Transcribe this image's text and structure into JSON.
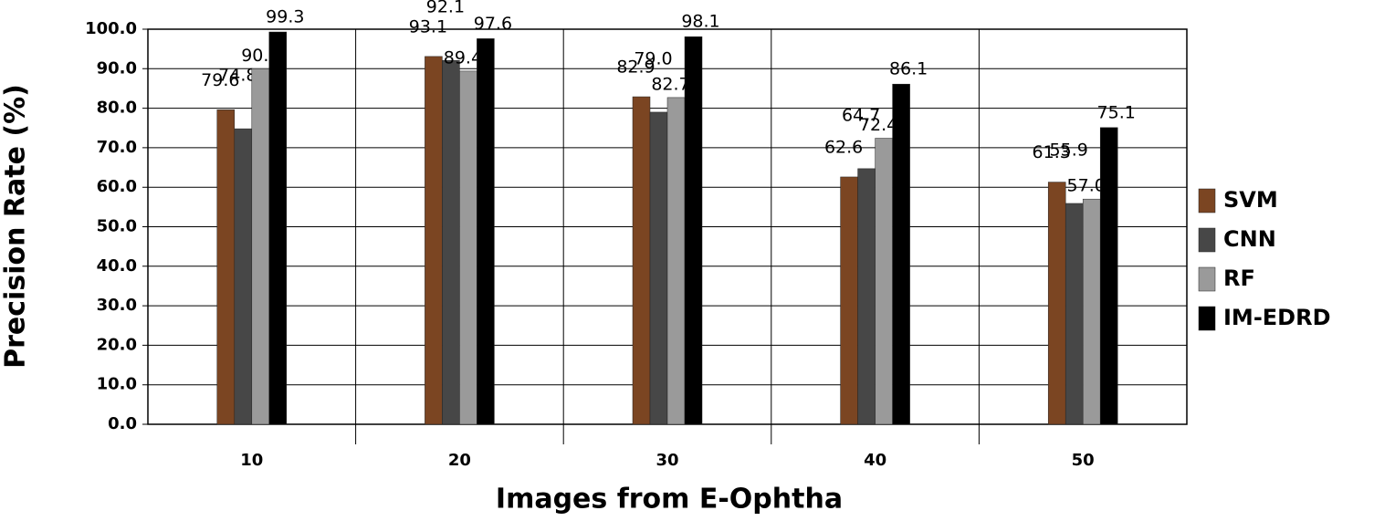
{
  "chart_data": {
    "type": "bar",
    "x_label": "Images from E-Ophtha",
    "y_label": "Precision Rate (%)",
    "categories": [
      "10",
      "20",
      "30",
      "40",
      "50"
    ],
    "series": [
      {
        "name": "SVM",
        "color": "#7b4522",
        "values": [
          79.6,
          93.1,
          82.9,
          62.6,
          61.3
        ],
        "value_labels": [
          "79.6",
          "93.1",
          "82.9",
          "62.6",
          "61.3"
        ]
      },
      {
        "name": "CNN",
        "color": "#474747",
        "values": [
          74.8,
          92.1,
          79.0,
          64.7,
          55.9
        ],
        "value_labels": [
          "74.8",
          "92.1",
          "79.0",
          "64.7",
          "55.9"
        ]
      },
      {
        "name": "RF",
        "color": "#9a9a9a",
        "values": [
          90.0,
          89.4,
          82.7,
          72.4,
          57.0
        ],
        "value_labels": [
          "90.",
          "89.4",
          "82.7",
          "72.4",
          "57.0"
        ]
      },
      {
        "name": "IM-EDRD",
        "color": "#000000",
        "values": [
          99.3,
          97.6,
          98.1,
          86.1,
          75.1
        ],
        "value_labels": [
          "99.3",
          "97.6",
          "98.1",
          "86.1",
          "75.1"
        ]
      }
    ],
    "ylim": [
      0,
      100
    ],
    "yticks": [
      {
        "value": 0,
        "label": "0.0"
      },
      {
        "value": 10,
        "label": "10.0"
      },
      {
        "value": 20,
        "label": "20.0"
      },
      {
        "value": 30,
        "label": "30.0"
      },
      {
        "value": 40,
        "label": "40.0"
      },
      {
        "value": 50,
        "label": "50.0"
      },
      {
        "value": 60,
        "label": "60.0"
      },
      {
        "value": 70,
        "label": "70.0"
      },
      {
        "value": 80,
        "label": "80.0"
      },
      {
        "value": 90,
        "label": "90.0"
      },
      {
        "value": 100,
        "label": "100.0"
      }
    ],
    "grid": true,
    "legend": "right"
  }
}
